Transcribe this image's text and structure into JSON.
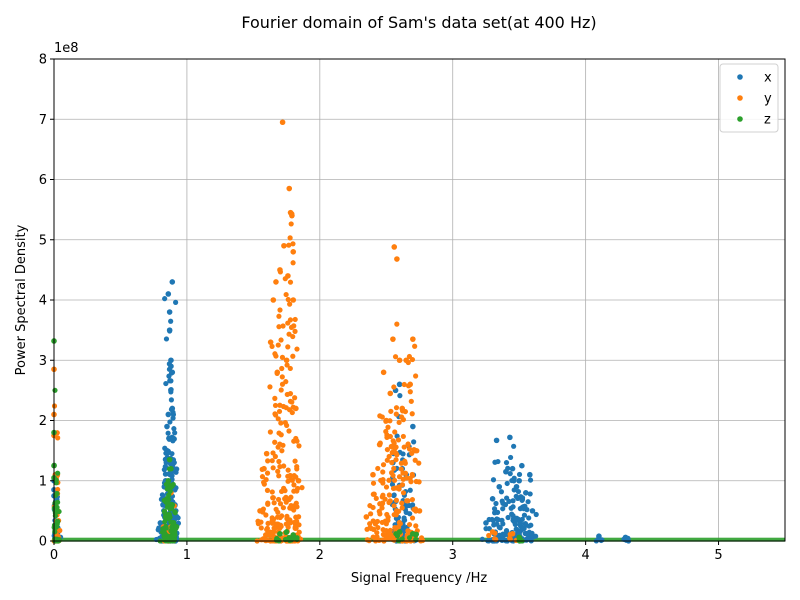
{
  "chart_data": {
    "type": "scatter",
    "title": "Fourier domain of Sam's data set(at 400 Hz)",
    "xlabel": "Signal Frequency /Hz",
    "ylabel": "Power Spectral Density",
    "y_offset_label": "1e8",
    "y_multiplier": 100000000,
    "xlim": [
      0,
      5.5
    ],
    "ylim": [
      0,
      8
    ],
    "x_ticks": [
      0,
      1,
      2,
      3,
      4,
      5
    ],
    "y_ticks": [
      0,
      1,
      2,
      3,
      4,
      5,
      6,
      7,
      8
    ],
    "grid": true,
    "legend_position": "top-right",
    "series": [
      {
        "name": "x",
        "color": "#1f77b4",
        "points": [
          [
            0.0,
            1.0
          ],
          [
            0.0,
            0.85
          ],
          [
            0.0,
            0.75
          ],
          [
            0.01,
            0.5
          ],
          [
            0.02,
            0.3
          ],
          [
            0.03,
            0.15
          ],
          [
            0.8,
            0.3
          ],
          [
            0.82,
            0.6
          ],
          [
            0.83,
            0.9
          ],
          [
            0.84,
            1.0
          ],
          [
            0.85,
            1.5
          ],
          [
            0.85,
            1.9
          ],
          [
            0.86,
            2.1
          ],
          [
            0.86,
            4.1
          ],
          [
            0.87,
            3.5
          ],
          [
            0.87,
            3.8
          ],
          [
            0.88,
            3.0
          ],
          [
            0.88,
            2.9
          ],
          [
            0.89,
            4.3
          ],
          [
            0.89,
            2.2
          ],
          [
            0.89,
            2.8
          ],
          [
            0.9,
            1.7
          ],
          [
            0.9,
            1.2
          ],
          [
            0.91,
            0.6
          ],
          [
            2.55,
            1.3
          ],
          [
            2.57,
            2.5
          ],
          [
            2.6,
            2.6
          ],
          [
            2.62,
            1.2
          ],
          [
            2.65,
            1.1
          ],
          [
            2.7,
            1.9
          ],
          [
            3.25,
            0.3
          ],
          [
            3.3,
            0.7
          ],
          [
            3.33,
            1.67
          ],
          [
            3.35,
            0.9
          ],
          [
            3.4,
            1.15
          ],
          [
            3.43,
            1.72
          ],
          [
            3.45,
            1.2
          ],
          [
            3.48,
            0.9
          ],
          [
            3.5,
            1.0
          ],
          [
            3.52,
            1.25
          ],
          [
            3.55,
            0.8
          ],
          [
            3.58,
            1.1
          ],
          [
            3.6,
            0.5
          ],
          [
            4.1,
            0.08
          ],
          [
            4.3,
            0.06
          ]
        ]
      },
      {
        "name": "y",
        "color": "#ff7f0e",
        "points": [
          [
            0.0,
            2.85
          ],
          [
            0.0,
            2.1
          ],
          [
            0.0,
            1.75
          ],
          [
            0.01,
            1.1
          ],
          [
            0.01,
            0.6
          ],
          [
            0.02,
            0.3
          ],
          [
            0.85,
            0.4
          ],
          [
            0.88,
            0.8
          ],
          [
            1.55,
            0.5
          ],
          [
            1.58,
            1.2
          ],
          [
            1.6,
            1.45
          ],
          [
            1.63,
            3.3
          ],
          [
            1.65,
            4.0
          ],
          [
            1.67,
            4.3
          ],
          [
            1.68,
            2.8
          ],
          [
            1.7,
            4.5
          ],
          [
            1.72,
            6.95
          ],
          [
            1.73,
            4.9
          ],
          [
            1.75,
            3.0
          ],
          [
            1.76,
            4.4
          ],
          [
            1.77,
            5.85
          ],
          [
            1.78,
            5.45
          ],
          [
            1.79,
            5.4
          ],
          [
            1.8,
            4.8
          ],
          [
            1.8,
            4.0
          ],
          [
            1.82,
            2.2
          ],
          [
            1.84,
            1.0
          ],
          [
            2.35,
            0.4
          ],
          [
            2.4,
            1.1
          ],
          [
            2.45,
            1.6
          ],
          [
            2.48,
            2.8
          ],
          [
            2.5,
            2.0
          ],
          [
            2.53,
            2.45
          ],
          [
            2.55,
            3.35
          ],
          [
            2.56,
            4.88
          ],
          [
            2.58,
            4.68
          ],
          [
            2.6,
            3.0
          ],
          [
            2.62,
            2.2
          ],
          [
            2.65,
            3.0
          ],
          [
            2.68,
            2.6
          ],
          [
            2.7,
            3.35
          ],
          [
            2.72,
            1.5
          ],
          [
            2.75,
            0.5
          ],
          [
            3.3,
            0.15
          ],
          [
            3.45,
            0.12
          ]
        ]
      },
      {
        "name": "z",
        "color": "#2ca02c",
        "points": [
          [
            0.0,
            3.32
          ],
          [
            0.0,
            1.8
          ],
          [
            0.0,
            1.25
          ],
          [
            0.0,
            1.05
          ],
          [
            0.01,
            0.5
          ],
          [
            0.02,
            0.25
          ],
          [
            0.82,
            0.2
          ],
          [
            0.84,
            0.4
          ],
          [
            0.85,
            0.7
          ],
          [
            0.86,
            1.0
          ],
          [
            0.87,
            1.35
          ],
          [
            0.88,
            1.2
          ],
          [
            0.88,
            0.9
          ],
          [
            0.89,
            0.6
          ],
          [
            0.9,
            0.3
          ],
          [
            1.7,
            0.12
          ],
          [
            1.75,
            0.15
          ],
          [
            1.8,
            0.1
          ],
          [
            2.6,
            0.15
          ],
          [
            2.7,
            0.12
          ],
          [
            3.5,
            0.06
          ]
        ]
      }
    ]
  }
}
